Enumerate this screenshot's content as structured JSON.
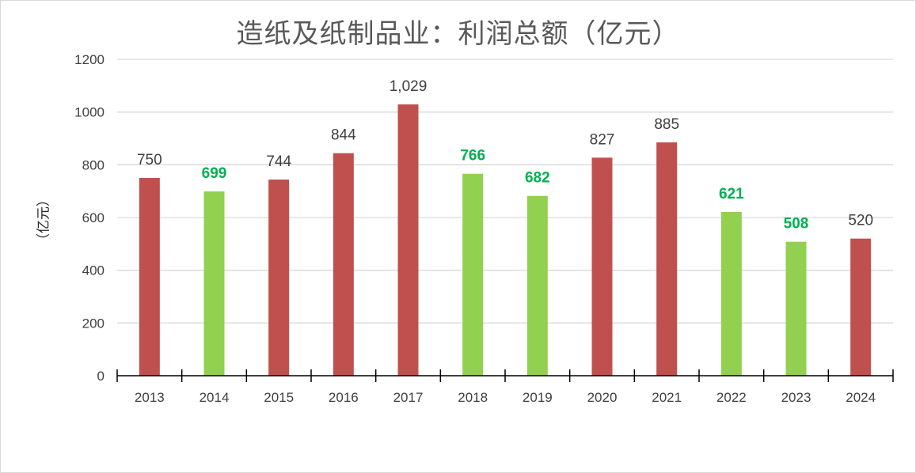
{
  "chart_data": {
    "type": "bar",
    "title": "造纸及纸制品业：利润总额（亿元）",
    "ylabel": "（亿元）",
    "xlabel": "",
    "categories": [
      "2013",
      "2014",
      "2015",
      "2016",
      "2017",
      "2018",
      "2019",
      "2020",
      "2021",
      "2022",
      "2023",
      "2024"
    ],
    "values": [
      750,
      699,
      744,
      844,
      1029,
      766,
      682,
      827,
      885,
      621,
      508,
      520
    ],
    "data_labels": [
      "750",
      "699",
      "744",
      "844",
      "1,029",
      "766",
      "682",
      "827",
      "885",
      "621",
      "508",
      "520"
    ],
    "direction": [
      "up",
      "down",
      "up",
      "up",
      "up",
      "down",
      "down",
      "up",
      "up",
      "down",
      "down",
      "up"
    ],
    "ylim": [
      0,
      1200
    ],
    "yticks": [
      0,
      200,
      400,
      600,
      800,
      1000,
      1200
    ],
    "grid": true,
    "legend": "none",
    "colors": {
      "up": "#c0504d",
      "down": "#92d050",
      "down_label": "#00b050",
      "grid": "#d9d9d9",
      "axis": "#000000"
    }
  }
}
